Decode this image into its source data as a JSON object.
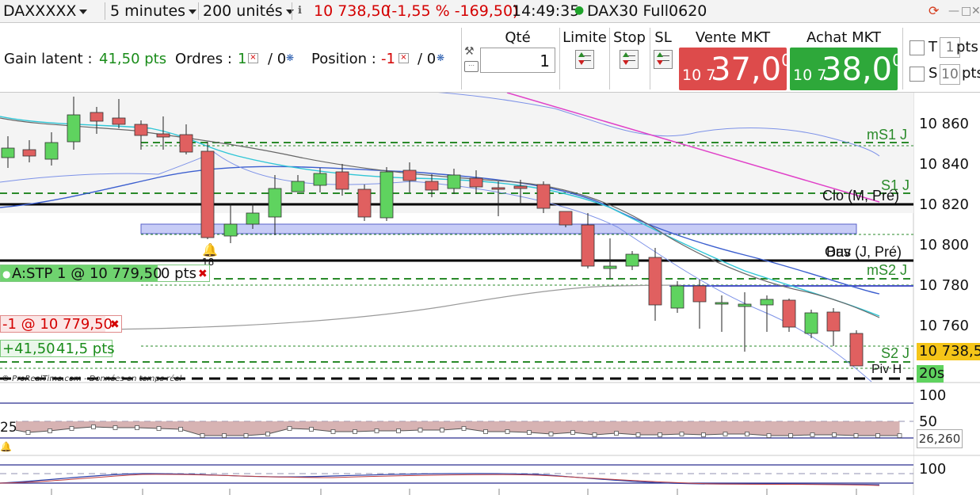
{
  "toolbar": {
    "instrument": "DAXXXXX",
    "timeframe": "5 minutes",
    "units": "200 unités",
    "price": "10 738,50",
    "change": "(-1,55 % -169,50)",
    "time": "14:49:35",
    "market_name": "DAX30 Full0620"
  },
  "order_panel": {
    "gain_label": "Gain latent :",
    "gain_value": "41,50 pts",
    "orders_label": "Ordres :",
    "orders_count": "1",
    "orders_sep": "/ 0",
    "position_label": "Position :",
    "position_value": "-1",
    "position_sep": "/ 0",
    "qty_label": "Qté",
    "qty_value": "1",
    "limit_label": "Limite",
    "stop_label": "Stop",
    "sl_label": "SL",
    "sell_label": "Vente MKT",
    "sell_prefix": "10 7",
    "sell_big": "37,0",
    "sell_sup": "0",
    "buy_label": "Achat MKT",
    "buy_prefix": "10 7",
    "buy_big": "38,0",
    "buy_sup": "0",
    "t_label": "T",
    "t_value": "1",
    "pts_label": "pts",
    "s_label": "S",
    "s_value": "10",
    "pts2_label": "pts"
  },
  "chart": {
    "y_ticks": [
      "10 860",
      "10 840",
      "10 820",
      "10 800",
      "10 780",
      "10 760"
    ],
    "current_price_tag": "10 738,5",
    "countdown_tag": "20s",
    "level_labels": {
      "ms1": "mS1 J",
      "s1": "S1 J",
      "clo": "Clo (M, Pré)",
      "bas": "Bas (J, Pré)",
      "ouv": "Ouv",
      "ms2": "mS2 J",
      "s2": "S2 J",
      "piv": "Piv H"
    },
    "stop_order": "A:STP 1 @ 10 779,50",
    "stop_pts": "0 pts",
    "position_order": "-1 @ 10 779,50",
    "pnl_value": "+41,50",
    "pnl_pts": "41,5 pts",
    "alert_count": "18",
    "watermark": "© ProRealTime.com - Données en temps réel"
  },
  "indicator1": {
    "ticks": [
      "100",
      "50"
    ],
    "value_left": "25",
    "value_right": "26,260"
  },
  "indicator2": {
    "ticks": [
      "100"
    ]
  },
  "colors": {
    "bull": "#5fd35f",
    "bear": "#e06060",
    "sell_btn": "#dd4b4b",
    "buy_btn": "#2ea83a",
    "level_green": "#2a8a2a"
  }
}
